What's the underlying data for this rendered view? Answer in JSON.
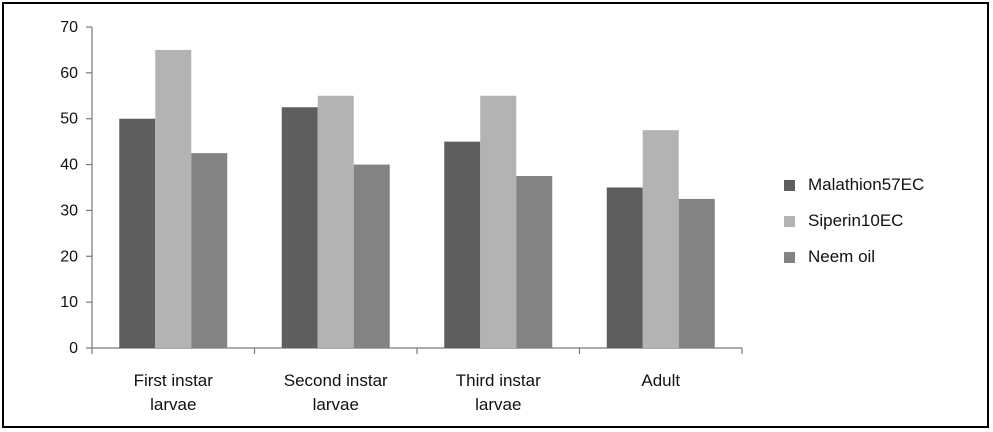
{
  "chart_data": {
    "type": "bar",
    "categories": [
      [
        "First instar",
        "larvae"
      ],
      [
        "Second instar",
        "larvae"
      ],
      [
        "Third instar",
        "larvae"
      ],
      [
        "Adult"
      ]
    ],
    "series": [
      {
        "name": "Malathion57EC",
        "color": "#5e5e5e",
        "values": [
          50,
          52.5,
          45,
          35
        ]
      },
      {
        "name": "Siperin10EC",
        "color": "#b3b3b3",
        "values": [
          65,
          55,
          55,
          47.5
        ]
      },
      {
        "name": "Neem oil",
        "color": "#838383",
        "values": [
          42.5,
          40,
          37.5,
          32.5
        ]
      }
    ],
    "yticks": [
      0,
      10,
      20,
      30,
      40,
      50,
      60,
      70
    ],
    "ylim": [
      0,
      70
    ],
    "grid": false,
    "legend_position": "right",
    "title": "",
    "xlabel": "",
    "ylabel": ""
  }
}
